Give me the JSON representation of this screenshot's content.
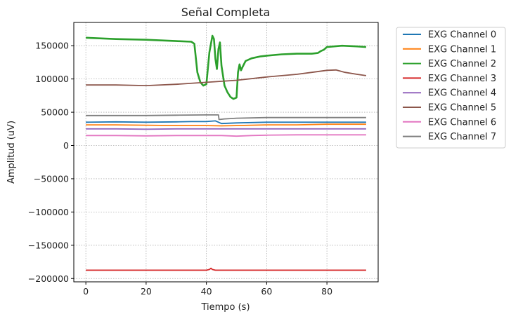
{
  "chart_data": {
    "type": "line",
    "title": "Señal Completa",
    "xlabel": "Tiempo (s)",
    "ylabel": "Amplitud (uV)",
    "xlim": [
      -4,
      97
    ],
    "ylim": [
      -205000,
      185000
    ],
    "xticks": [
      0,
      20,
      40,
      60,
      80
    ],
    "xtick_labels": [
      "0",
      "20",
      "40",
      "60",
      "80"
    ],
    "yticks": [
      -200000,
      -150000,
      -100000,
      -50000,
      0,
      50000,
      100000,
      150000
    ],
    "ytick_labels": [
      "−200000",
      "−150000",
      "−100000",
      "−50000",
      "0",
      "50000",
      "100000",
      "150000"
    ],
    "grid": true,
    "legend": {
      "placement": "outside-upper-right"
    },
    "series": [
      {
        "name": "EXG Channel 0",
        "color": "#1f77b4",
        "x": [
          0,
          10,
          20,
          30,
          35,
          40,
          43,
          45,
          50,
          60,
          70,
          80,
          93
        ],
        "y": [
          35000,
          35500,
          35000,
          35500,
          36000,
          36000,
          37000,
          33000,
          34000,
          35000,
          35000,
          35000,
          35000
        ]
      },
      {
        "name": "EXG Channel 1",
        "color": "#ff7f0e",
        "x": [
          0,
          10,
          20,
          30,
          40,
          45,
          50,
          60,
          70,
          80,
          93
        ],
        "y": [
          31000,
          31000,
          30500,
          30000,
          30000,
          29500,
          30000,
          31000,
          31000,
          32000,
          32000
        ]
      },
      {
        "name": "EXG Channel 2",
        "color": "#2ca02c",
        "x": [
          0,
          10,
          20,
          30,
          35,
          36,
          37,
          38,
          39,
          40,
          41,
          42,
          42.5,
          43,
          43.5,
          44,
          44.5,
          45,
          46,
          47,
          48,
          49,
          50,
          50.5,
          51,
          51.5,
          52,
          53,
          55,
          58,
          60,
          65,
          70,
          75,
          77,
          78,
          79,
          80,
          85,
          90,
          93
        ],
        "y": [
          162000,
          160000,
          159000,
          157000,
          156000,
          153000,
          110000,
          95000,
          90000,
          92000,
          140000,
          165000,
          160000,
          130000,
          115000,
          145000,
          155000,
          120000,
          90000,
          80000,
          73000,
          70000,
          72000,
          110000,
          122000,
          113000,
          118000,
          127000,
          131000,
          134000,
          135000,
          137000,
          138000,
          138000,
          139000,
          142000,
          144000,
          148000,
          150000,
          149000,
          148000
        ]
      },
      {
        "name": "EXG Channel 3",
        "color": "#d62728",
        "x": [
          0,
          10,
          20,
          30,
          40,
          41,
          41.5,
          42,
          43,
          50,
          60,
          70,
          80,
          93
        ],
        "y": [
          -187500,
          -187500,
          -187500,
          -187500,
          -187500,
          -186500,
          -184500,
          -186500,
          -187500,
          -187500,
          -187500,
          -187500,
          -187500,
          -187500
        ]
      },
      {
        "name": "EXG Channel 4",
        "color": "#9467bd",
        "x": [
          0,
          10,
          20,
          30,
          40,
          45,
          50,
          60,
          70,
          80,
          93
        ],
        "y": [
          25000,
          25000,
          24500,
          25000,
          25000,
          25000,
          25000,
          25000,
          25000,
          25000,
          25000
        ]
      },
      {
        "name": "EXG Channel 5",
        "color": "#8c564b",
        "x": [
          0,
          10,
          20,
          30,
          40,
          50,
          60,
          70,
          75,
          80,
          83,
          86,
          90,
          93
        ],
        "y": [
          91000,
          91000,
          90000,
          92000,
          95000,
          98000,
          103000,
          107000,
          110000,
          113000,
          113500,
          110000,
          107000,
          105000
        ]
      },
      {
        "name": "EXG Channel 6",
        "color": "#e377c2",
        "x": [
          0,
          10,
          20,
          30,
          40,
          45,
          50,
          55,
          60,
          70,
          80,
          93
        ],
        "y": [
          15000,
          15000,
          14500,
          15000,
          15000,
          15000,
          14000,
          15000,
          15500,
          16000,
          16000,
          16000
        ]
      },
      {
        "name": "EXG Channel 7",
        "color": "#7f7f7f",
        "x": [
          0,
          10,
          20,
          30,
          40,
          44,
          44.2,
          46,
          50,
          60,
          70,
          80,
          93
        ],
        "y": [
          45000,
          45000,
          45000,
          45500,
          46000,
          46000,
          39000,
          40000,
          41000,
          42000,
          42000,
          42000,
          42000
        ]
      }
    ]
  }
}
